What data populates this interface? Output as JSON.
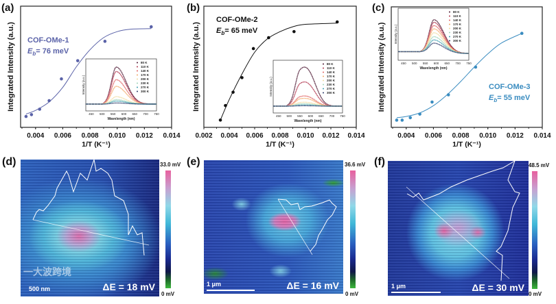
{
  "chart_data": [
    {
      "panel": "(a)",
      "type": "scatter",
      "title": "COF-OMe-1",
      "annotation_prefix": "E",
      "annotation_sub": "b",
      "annotation_value": "= 76 meV",
      "xlabel": "1/T (K⁻¹)",
      "ylabel": "Integrated Intensity (a.u.)",
      "xlim": [
        0.0029,
        0.014
      ],
      "ylim": [
        0,
        1
      ],
      "xticks": [
        "0.004",
        "0.006",
        "0.008",
        "0.010",
        "0.012",
        "0.014"
      ],
      "color": "#5a62a8",
      "x": [
        0.0033,
        0.0037,
        0.0043,
        0.005,
        0.0059,
        0.0071,
        0.0091,
        0.0125
      ],
      "y": [
        0.09,
        0.105,
        0.15,
        0.22,
        0.4,
        0.55,
        0.71,
        0.83
      ],
      "fit": {
        "x": [
          0.0033,
          0.004,
          0.005,
          0.006,
          0.007,
          0.008,
          0.009,
          0.01,
          0.011,
          0.0125
        ],
        "y": [
          0.11,
          0.14,
          0.21,
          0.33,
          0.5,
          0.64,
          0.74,
          0.79,
          0.81,
          0.815
        ]
      },
      "inset": {
        "xlabel": "Wavelength (nm)",
        "ylabel": "Intensity (a.u.)",
        "xlim": [
          425,
          750
        ],
        "xticks": [
          "450",
          "500",
          "550",
          "600",
          "650",
          "700",
          "750"
        ],
        "legend": [
          "80 K",
          "110 K",
          "140 K",
          "170 K",
          "200 K",
          "230 K",
          "270 K",
          "300 K"
        ],
        "colors": [
          "#4a1530",
          "#b0344d",
          "#e06060",
          "#f3a868",
          "#f0dca0",
          "#9fd4b8",
          "#3a9cb0",
          "#2a3a6a"
        ],
        "peak_nm": 565,
        "shoulder_nm": 0,
        "amplitudes": [
          1.0,
          0.88,
          0.66,
          0.48,
          0.2,
          0.12,
          0.08,
          0.03
        ],
        "baseline": 0
      }
    },
    {
      "panel": "(b)",
      "type": "scatter",
      "title": "COF-OMe-2",
      "annotation_prefix": "E",
      "annotation_sub": "b",
      "annotation_value": "= 65 meV",
      "xlabel": "1/T (K⁻¹)",
      "ylabel": "Integrated Intensity (a.u.)",
      "xlim": [
        0.002,
        0.014
      ],
      "ylim": [
        0,
        1
      ],
      "xticks": [
        "0.002",
        "0.004",
        "0.006",
        "0.008",
        "0.010",
        "0.012",
        "0.014"
      ],
      "color": "#111111",
      "x": [
        0.0033,
        0.0037,
        0.0043,
        0.005,
        0.0059,
        0.0071,
        0.0091,
        0.0125
      ],
      "y": [
        0.06,
        0.18,
        0.29,
        0.41,
        0.65,
        0.74,
        0.79,
        0.87
      ],
      "fit": {
        "x": [
          0.0033,
          0.004,
          0.005,
          0.006,
          0.007,
          0.008,
          0.009,
          0.01,
          0.0125
        ],
        "y": [
          0.06,
          0.23,
          0.44,
          0.62,
          0.73,
          0.79,
          0.83,
          0.85,
          0.86
        ]
      },
      "inset": {
        "xlabel": "Wavelength (nm)",
        "ylabel": "Intensity (a.u.)",
        "xlim": [
          425,
          750
        ],
        "xticks": [
          "450",
          "500",
          "550",
          "600",
          "650",
          "700",
          "750"
        ],
        "legend": [
          "80 K",
          "110 K",
          "140 K",
          "170 K",
          "200 K",
          "230 K",
          "270 K",
          "300 K"
        ],
        "colors": [
          "#4a1530",
          "#b0344d",
          "#e06060",
          "#f3a868",
          "#f0dca0",
          "#9fd4b8",
          "#3a9cb0",
          "#2a3a6a"
        ],
        "peak_nm": 550,
        "shoulder_nm": 600,
        "amplitudes": [
          1.0,
          0.62,
          0.26,
          0.2,
          0.1,
          0.06,
          0.03,
          0.01
        ],
        "baseline": 0
      }
    },
    {
      "panel": "(c)",
      "type": "scatter",
      "title": "COF-OMe-3",
      "annotation_prefix": "E",
      "annotation_sub": "b",
      "annotation_value": "= 55 meV",
      "xlabel": "1/T (K⁻¹)",
      "ylabel": "Integrated Intensity (a.u.)",
      "xlim": [
        0.0029,
        0.014
      ],
      "ylim": [
        0,
        1
      ],
      "xticks": [
        "0.004",
        "0.006",
        "0.008",
        "0.010",
        "0.012",
        "0.014"
      ],
      "color": "#3a8cc0",
      "x": [
        0.0033,
        0.0037,
        0.0043,
        0.005,
        0.0059,
        0.0071,
        0.0091,
        0.0125
      ],
      "y": [
        0.06,
        0.06,
        0.08,
        0.11,
        0.21,
        0.27,
        0.5,
        0.78
      ],
      "fit": {
        "x": [
          0.0033,
          0.004,
          0.005,
          0.006,
          0.007,
          0.008,
          0.009,
          0.01,
          0.011,
          0.0125
        ],
        "y": [
          0.08,
          0.09,
          0.12,
          0.18,
          0.27,
          0.38,
          0.5,
          0.61,
          0.7,
          0.78
        ]
      },
      "inset": {
        "xlabel": "Wavelength (nm)",
        "ylabel": "Intensity (a.u.)",
        "xlim": [
          425,
          750
        ],
        "xticks": [
          "450",
          "500",
          "550",
          "600",
          "650",
          "700",
          "750"
        ],
        "legend": [
          "80 K",
          "110 K",
          "140 K",
          "170 K",
          "200 K",
          "230 K",
          "270 K",
          "300 K"
        ],
        "colors": [
          "#4a1530",
          "#b0344d",
          "#e06060",
          "#f3a868",
          "#f0dca0",
          "#9fd4b8",
          "#3a9cb0",
          "#2a3a6a"
        ],
        "peak_nm": 590,
        "shoulder_nm": 0,
        "amplitudes": [
          1.0,
          0.92,
          0.82,
          0.72,
          0.6,
          0.48,
          0.38,
          0.28
        ],
        "baseline": 0.12
      }
    }
  ],
  "maps": [
    {
      "panel": "(d)",
      "cbar_max": "33.0 mV",
      "cbar_min": "0 mV",
      "delta_e": "ΔE = 18 mV",
      "scale_bar": "500 nm",
      "watermark": "一大波跨境"
    },
    {
      "panel": "(e)",
      "cbar_max": "36.6 mV",
      "cbar_min": "0 mV",
      "delta_e": "ΔE = 16 mV",
      "scale_bar": "1 μm"
    },
    {
      "panel": "(f)",
      "cbar_max": "48.5 mV",
      "cbar_min": "0 mV",
      "delta_e": "ΔE = 30 mV",
      "scale_bar": "1 μm"
    }
  ]
}
